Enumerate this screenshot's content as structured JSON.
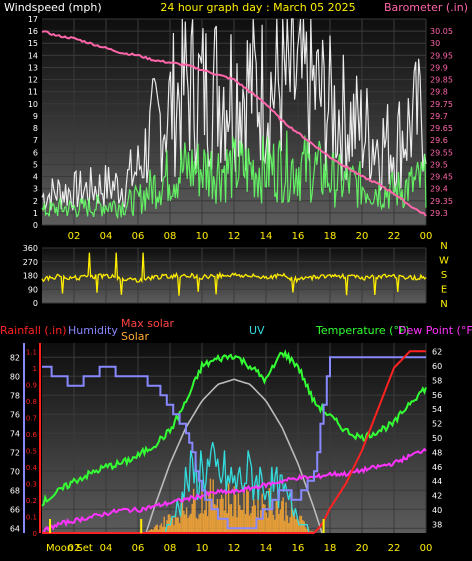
{
  "chart_data": [
    {
      "type": "line",
      "title": "24 hour graph day : March 05 2025",
      "ylabel": "Windspeed (mph)",
      "y2label": "Barometer (.in)",
      "x_ticks": [
        "02",
        "04",
        "06",
        "08",
        "10",
        "12",
        "14",
        "16",
        "18",
        "20",
        "22",
        "00"
      ],
      "ylim": [
        0,
        17
      ],
      "y_ticks": [
        "0",
        "1",
        "2",
        "3",
        "4",
        "5",
        "6",
        "7",
        "8",
        "9",
        "10",
        "11",
        "12",
        "13",
        "14",
        "15",
        "16",
        "17"
      ],
      "y2lim": [
        29.25,
        30.1
      ],
      "y2_ticks": [
        "29.3",
        "29.35",
        "29.4",
        "29.45",
        "29.5",
        "29.55",
        "29.6",
        "29.65",
        "29.7",
        "29.75",
        "29.8",
        "29.85",
        "29.9",
        "29.95",
        "30",
        "30.05"
      ],
      "series": [
        {
          "kind": "gust",
          "color": "#ffffff",
          "x": [
            0,
            1,
            2,
            3,
            4,
            5,
            6,
            7,
            8,
            9,
            10,
            11,
            12,
            13,
            14,
            15,
            16,
            17,
            18,
            19,
            20,
            21,
            22,
            23,
            24
          ],
          "y": [
            2.5,
            3,
            3,
            3.2,
            3.5,
            3.5,
            5,
            8.5,
            10.5,
            12.5,
            12,
            12.5,
            12.5,
            12.5,
            12,
            12.5,
            12.5,
            12,
            10.5,
            9.5,
            8.5,
            7.5,
            7,
            9,
            10
          ]
        },
        {
          "kind": "wind",
          "color": "#66ff66",
          "x": [
            0,
            1,
            2,
            3,
            4,
            5,
            6,
            7,
            8,
            9,
            10,
            11,
            12,
            13,
            14,
            15,
            16,
            17,
            18,
            19,
            20,
            21,
            22,
            23,
            24
          ],
          "y": [
            1.2,
            1.5,
            1.5,
            1.6,
            1.8,
            1.8,
            2.2,
            3.5,
            4.5,
            5,
            5,
            5,
            5,
            5,
            5,
            5.2,
            5.2,
            5,
            4.2,
            3.8,
            3.5,
            3.2,
            3,
            3.5,
            4
          ]
        },
        {
          "kind": "barometer",
          "color": "#ff66aa",
          "x": [
            0,
            1,
            2,
            3,
            4,
            5,
            6,
            7,
            8,
            9,
            10,
            11,
            12,
            13,
            14,
            15,
            16,
            17,
            18,
            19,
            20,
            21,
            22,
            23,
            24
          ],
          "y": [
            30.05,
            30.03,
            30.02,
            30.0,
            29.98,
            29.96,
            29.95,
            29.93,
            29.92,
            29.91,
            29.89,
            29.87,
            29.85,
            29.8,
            29.75,
            29.68,
            29.63,
            29.58,
            29.53,
            29.49,
            29.45,
            29.42,
            29.38,
            29.33,
            29.29
          ]
        }
      ]
    },
    {
      "type": "line",
      "title": "",
      "ylim": [
        0,
        360
      ],
      "y_ticks": [
        "0",
        "90",
        "180",
        "270",
        "360"
      ],
      "compass": [
        "N",
        "W",
        "S",
        "E",
        "N"
      ],
      "series": [
        {
          "kind": "direction",
          "color": "#ffee00",
          "x": [
            0,
            1,
            2,
            3,
            4,
            5,
            6,
            7,
            8,
            9,
            10,
            11,
            12,
            13,
            14,
            15,
            16,
            17,
            18,
            19,
            20,
            21,
            22,
            23,
            24
          ],
          "y": [
            155,
            175,
            165,
            170,
            180,
            160,
            150,
            170,
            175,
            185,
            170,
            180,
            185,
            175,
            170,
            180,
            150,
            170,
            180,
            175,
            165,
            170,
            180,
            165,
            170
          ]
        }
      ]
    },
    {
      "type": "line",
      "title": "",
      "labels": {
        "rainfall": "Rainfall (.in)",
        "humidity": "Humidity",
        "max_solar": "Max solar",
        "solar": "Solar",
        "uv": "UV",
        "temperature": "Temperature (°F)",
        "dewpoint": "Dew Point (°F)",
        "moon": "Moon Set"
      },
      "x_ticks": [
        "02",
        "04",
        "06",
        "08",
        "10",
        "12",
        "14",
        "16",
        "18",
        "20",
        "22",
        "00"
      ],
      "humidity_ticks": [
        "64",
        "66",
        "68",
        "70",
        "72",
        "74",
        "76",
        "78",
        "80",
        "82"
      ],
      "humidity_lim": [
        63.5,
        83.5
      ],
      "rain_ticks": [
        "0",
        "0.1",
        "0.2",
        "0.3",
        "0.4",
        "0.5",
        "0.6",
        "0.7",
        "0.8",
        "0.9",
        "1",
        "1.1"
      ],
      "rain_lim": [
        0,
        1.15
      ],
      "temp_ticks": [
        "38",
        "40",
        "42",
        "44",
        "46",
        "48",
        "50",
        "52",
        "54",
        "56",
        "58",
        "60",
        "62"
      ],
      "temp_lim": [
        36.8,
        63.2
      ],
      "series": [
        {
          "kind": "temperature",
          "color": "#33ff33",
          "x": [
            0,
            1,
            2,
            3,
            4,
            5,
            6,
            7,
            8,
            9,
            10,
            11,
            12,
            13,
            14,
            15,
            16,
            17,
            18,
            19,
            20,
            21,
            22,
            23,
            24
          ],
          "y": [
            41,
            42.5,
            44,
            45,
            46,
            46.5,
            47.5,
            49,
            51,
            55,
            60,
            61,
            61.5,
            60,
            58,
            62,
            60,
            55,
            53,
            51,
            50,
            51,
            52,
            55,
            57
          ]
        },
        {
          "kind": "dewpoint",
          "color": "#ff33ff",
          "x": [
            0,
            1,
            2,
            3,
            4,
            5,
            6,
            7,
            8,
            9,
            10,
            11,
            12,
            13,
            14,
            15,
            16,
            17,
            18,
            19,
            20,
            21,
            22,
            23,
            24
          ],
          "y": [
            37,
            38,
            38.5,
            39,
            39.5,
            40,
            40,
            40.5,
            41,
            41.5,
            42,
            42.5,
            42.5,
            43,
            43.5,
            44,
            44.5,
            44.5,
            45,
            45,
            45.5,
            46,
            46.5,
            47.5,
            48.5
          ]
        },
        {
          "kind": "humidity",
          "color": "#8888ff",
          "x": [
            0,
            1,
            2,
            3,
            4,
            5,
            6,
            7,
            8,
            9,
            10,
            11,
            12,
            13,
            14,
            15,
            16,
            17,
            18,
            19,
            20,
            21,
            22,
            23,
            24
          ],
          "y": [
            81,
            80,
            79,
            80,
            81,
            80,
            80,
            79,
            77,
            74,
            68,
            65,
            64,
            64,
            66,
            68,
            67,
            70,
            82,
            82,
            82,
            82,
            82,
            82,
            82
          ]
        },
        {
          "kind": "rain",
          "color": "#ff2222",
          "x": [
            0,
            17,
            17.5,
            18,
            19,
            20,
            21,
            22,
            23,
            23.5,
            24
          ],
          "y": [
            0,
            0,
            0.05,
            0.15,
            0.3,
            0.5,
            0.75,
            1.0,
            1.1,
            1.1,
            1.1
          ]
        },
        {
          "kind": "maxsolar",
          "color": "#bbbbbb",
          "x": [
            6.5,
            7,
            8,
            9,
            10,
            11,
            12,
            13,
            14,
            15,
            16,
            17,
            17.5
          ],
          "y": [
            0,
            0.15,
            0.42,
            0.64,
            0.8,
            0.9,
            0.93,
            0.9,
            0.8,
            0.64,
            0.42,
            0.15,
            0
          ]
        },
        {
          "kind": "solar",
          "color": "#ffaa33",
          "x": [
            6.5,
            7,
            8,
            9,
            10,
            11,
            12,
            13,
            14,
            15,
            16,
            17
          ],
          "y": [
            0,
            0.03,
            0.1,
            0.18,
            0.22,
            0.25,
            0.22,
            0.2,
            0.22,
            0.18,
            0.1,
            0
          ]
        },
        {
          "kind": "uv",
          "color": "#33dddd",
          "x": [
            7.5,
            8,
            9,
            10,
            11,
            12,
            13,
            14,
            15,
            16,
            17
          ],
          "y": [
            0,
            0.05,
            0.3,
            0.4,
            0.35,
            0.3,
            0.35,
            0.3,
            0.25,
            0.1,
            0
          ]
        }
      ]
    }
  ],
  "colors": {
    "background": "#000000",
    "plot_top": "#101010",
    "plot_bottom": "#5a5a5a",
    "text_default": "#ffffff",
    "title": "#ffee00",
    "barometer": "#ff66aa",
    "rainfall": "#ff2222",
    "humidity": "#8888ff",
    "max_solar": "#ff4444",
    "solar": "#ffaa33",
    "uv": "#33dddd",
    "temperature": "#33ff33",
    "dewpoint": "#ff33ff",
    "compass": "#ffee00"
  }
}
